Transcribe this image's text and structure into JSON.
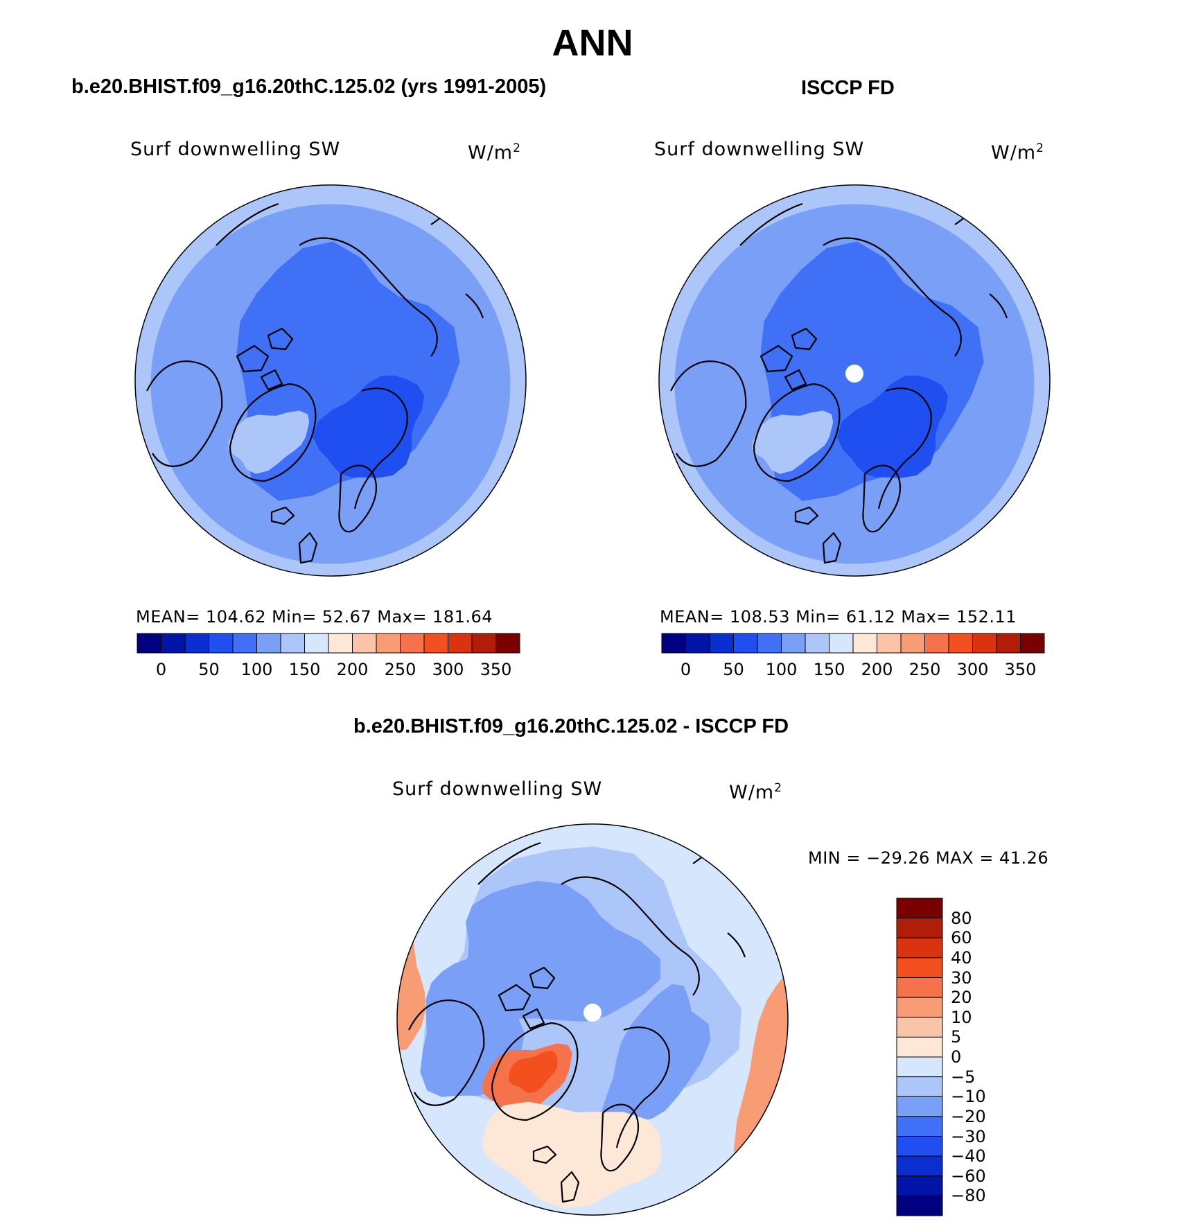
{
  "figure": {
    "title": "ANN"
  },
  "panels": [
    {
      "title": "b.e20.BHIST.f09_g16.20thC.125.02 (yrs 1991-2005)",
      "variable": "Surf downwelling SW",
      "units": "W/m",
      "units_exp": "2",
      "stats": "MEAN= 104.62   Min=   52.67   Max= 181.64"
    },
    {
      "title": "ISCCP FD",
      "variable": "Surf downwelling SW",
      "units": "W/m",
      "units_exp": "2",
      "stats": "MEAN= 108.53   Min=   61.12   Max= 152.11"
    },
    {
      "title": "b.e20.BHIST.f09_g16.20thC.125.02 - ISCCP FD",
      "variable": "Surf downwelling SW",
      "units": "W/m",
      "units_exp": "2",
      "stats": "MIN = −29.26 MAX =   41.26"
    }
  ],
  "chart_data": [
    {
      "type": "heatmap",
      "projection": "north polar stereographic",
      "title": "b.e20.BHIST.f09_g16.20thC.125.02 (yrs 1991-2005)",
      "variable": "Surf downwelling SW",
      "units": "W/m2",
      "mean": 104.62,
      "min": 52.67,
      "max": 181.64,
      "colorbar_orientation": "horizontal",
      "colorbar_ticks": [
        "0",
        "50",
        "100",
        "150",
        "200",
        "250",
        "300",
        "350"
      ],
      "colorbar_colors": [
        "#000080",
        "#0015a8",
        "#0a2ecf",
        "#1f4ff0",
        "#3f70f5",
        "#7a9ff7",
        "#acc6fa",
        "#d6e6fc",
        "#fde8d8",
        "#fbc4a8",
        "#f89c76",
        "#f6724a",
        "#f44f1f",
        "#d93310",
        "#b01e0a",
        "#7a0000"
      ]
    },
    {
      "type": "heatmap",
      "projection": "north polar stereographic",
      "title": "ISCCP FD",
      "variable": "Surf downwelling SW",
      "units": "W/m2",
      "mean": 108.53,
      "min": 61.12,
      "max": 152.11,
      "colorbar_orientation": "horizontal",
      "colorbar_ticks": [
        "0",
        "50",
        "100",
        "150",
        "200",
        "250",
        "300",
        "350"
      ],
      "colorbar_colors": [
        "#000080",
        "#0015a8",
        "#0a2ecf",
        "#1f4ff0",
        "#3f70f5",
        "#7a9ff7",
        "#acc6fa",
        "#d6e6fc",
        "#fde8d8",
        "#fbc4a8",
        "#f89c76",
        "#f6724a",
        "#f44f1f",
        "#d93310",
        "#b01e0a",
        "#7a0000"
      ]
    },
    {
      "type": "heatmap",
      "projection": "north polar stereographic",
      "title": "b.e20.BHIST.f09_g16.20thC.125.02 - ISCCP FD",
      "variable": "Surf downwelling SW",
      "units": "W/m2",
      "min": -29.26,
      "max": 41.26,
      "colorbar_orientation": "vertical",
      "colorbar_ticks": [
        "80",
        "60",
        "40",
        "30",
        "20",
        "10",
        "5",
        "0",
        "−5",
        "−10",
        "−20",
        "−30",
        "−40",
        "−60",
        "−80"
      ],
      "colorbar_colors": [
        "#7a0000",
        "#b01e0a",
        "#d93310",
        "#f44f1f",
        "#f6724a",
        "#f89c76",
        "#fbc4a8",
        "#fde8d8",
        "#d6e6fc",
        "#acc6fa",
        "#7a9ff7",
        "#3f70f5",
        "#1f4ff0",
        "#0a2ecf",
        "#0015a8",
        "#000080"
      ]
    }
  ]
}
